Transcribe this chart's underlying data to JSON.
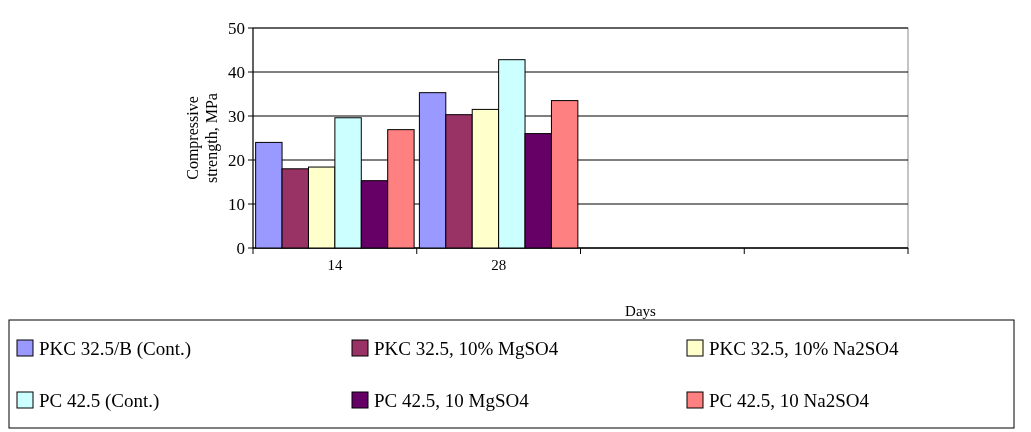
{
  "chart_data": {
    "type": "bar",
    "xlabel": "Days",
    "ylabel": "Compressive strength, MPa",
    "categories": [
      "14",
      "28",
      null,
      null
    ],
    "series": [
      {
        "name": "PKC 32.5/B (Cont.)",
        "color": "#9999ff",
        "values": [
          24,
          35.3,
          null,
          null
        ]
      },
      {
        "name": "PKC 32.5, 10% MgSO4",
        "color": "#993366",
        "values": [
          18,
          30.3,
          null,
          null
        ]
      },
      {
        "name": "PKC 32.5, 10% Na2SO4",
        "color": "#ffffcc",
        "values": [
          18.4,
          31.5,
          null,
          null
        ]
      },
      {
        "name": "PC 42.5 (Cont.)",
        "color": "#ccffff",
        "values": [
          29.6,
          42.8,
          null,
          null
        ]
      },
      {
        "name": "PC 42.5, 10 MgSO4",
        "color": "#660066",
        "values": [
          15.3,
          26,
          null,
          null
        ]
      },
      {
        "name": "PC 42.5, 10 Na2SO4",
        "color": "#ff8080",
        "values": [
          26.9,
          33.5,
          null,
          null
        ]
      }
    ],
    "ylim": [
      0,
      50
    ],
    "yticks": [
      0,
      10,
      20,
      30,
      40,
      50
    ],
    "grid": "y",
    "legend": "bottom"
  }
}
